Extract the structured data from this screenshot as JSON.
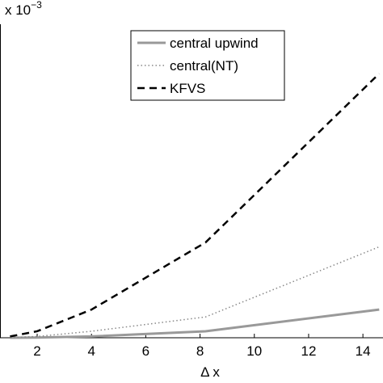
{
  "chart_data": {
    "type": "line",
    "xlabel": "Δ x",
    "y_multiplier_base": "x 10",
    "y_multiplier_exponent": "−3",
    "x": [
      1,
      2,
      4,
      8.2,
      14.6
    ],
    "series": [
      {
        "name": "central upwind",
        "color": "#999999",
        "style": "solid",
        "values": [
          0.001,
          0.005,
          0.03,
          0.15,
          0.65
        ]
      },
      {
        "name": "central(NT)",
        "color": "#888888",
        "style": "dotted",
        "values": [
          0.005,
          0.03,
          0.15,
          0.48,
          2.1
        ]
      },
      {
        "name": "KFVS",
        "color": "#000000",
        "style": "dashed",
        "values": [
          0.03,
          0.15,
          0.65,
          2.2,
          6.1
        ]
      }
    ],
    "xlim": [
      0.63,
      14.74
    ],
    "ylim": [
      0,
      7.8
    ],
    "xticks": [
      2,
      4,
      6,
      8,
      10,
      12,
      14
    ],
    "legend": "top-center"
  }
}
